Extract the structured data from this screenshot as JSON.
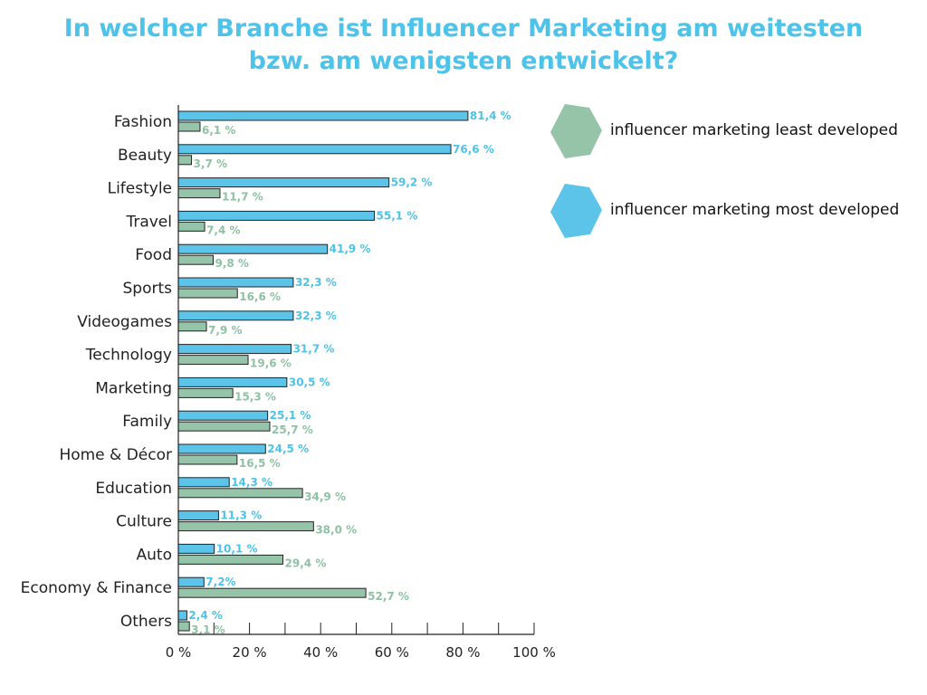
{
  "title": {
    "line1": "In welcher Branche ist Influencer Marketing am weitesten",
    "line2": "bzw. am wenigsten entwickelt?"
  },
  "colors": {
    "most": "#5bc4e8",
    "least": "#96c4a9",
    "most_text": "#4dc3ea",
    "least_text": "#8fc2a4",
    "title": "#4dc3ea"
  },
  "legend": [
    {
      "key": "least",
      "label": "influencer marketing least developed",
      "icon": "hexagon-icon"
    },
    {
      "key": "most",
      "label": "influencer marketing most developed",
      "icon": "hexagon-icon"
    }
  ],
  "chart_data": {
    "type": "bar",
    "orientation": "horizontal",
    "title": "In welcher Branche ist Influencer Marketing am weitesten bzw. am wenigsten entwickelt?",
    "categories": [
      "Fashion",
      "Beauty",
      "Lifestyle",
      "Travel",
      "Food",
      "Sports",
      "Videogames",
      "Technology",
      "Marketing",
      "Family",
      "Home & Décor",
      "Education",
      "Culture",
      "Auto",
      "Economy & Finance",
      "Others"
    ],
    "series": [
      {
        "name": "influencer marketing most developed",
        "key": "most",
        "values": [
          81.4,
          76.6,
          59.2,
          55.1,
          41.9,
          32.3,
          32.3,
          31.7,
          30.5,
          25.1,
          24.5,
          14.3,
          11.3,
          10.1,
          7.2,
          2.4
        ],
        "labels": [
          "81,4 %",
          "76,6 %",
          "59,2 %",
          "55,1 %",
          "41,9 %",
          "32,3 %",
          "32,3 %",
          "31,7 %",
          "30,5 %",
          "25,1 %",
          "24,5 %",
          "14,3 %",
          "11,3 %",
          "10,1 %",
          "7,2%",
          "2,4 %"
        ]
      },
      {
        "name": "influencer marketing least developed",
        "key": "least",
        "values": [
          6.1,
          3.7,
          11.7,
          7.4,
          9.8,
          16.6,
          7.9,
          19.6,
          15.3,
          25.7,
          16.5,
          34.9,
          38.0,
          29.4,
          52.7,
          3.1
        ],
        "labels": [
          "6,1 %",
          "3,7 %",
          "11,7 %",
          "7,4 %",
          "9,8 %",
          "16,6 %",
          "7,9 %",
          "19,6 %",
          "15,3 %",
          "25,7 %",
          "16,5 %",
          "34,9 %",
          "38,0 %",
          "29,4 %",
          "52,7 %",
          "3,1 %"
        ]
      }
    ],
    "xlim": [
      0,
      100
    ],
    "xticks": [
      0,
      20,
      40,
      60,
      80,
      100
    ],
    "xtick_labels": [
      "0 %",
      "20 %",
      "40 %",
      "60 %",
      "80 %",
      "100 %"
    ],
    "xlabel": "",
    "ylabel": "",
    "grid": false,
    "legend_position": "top-right"
  }
}
